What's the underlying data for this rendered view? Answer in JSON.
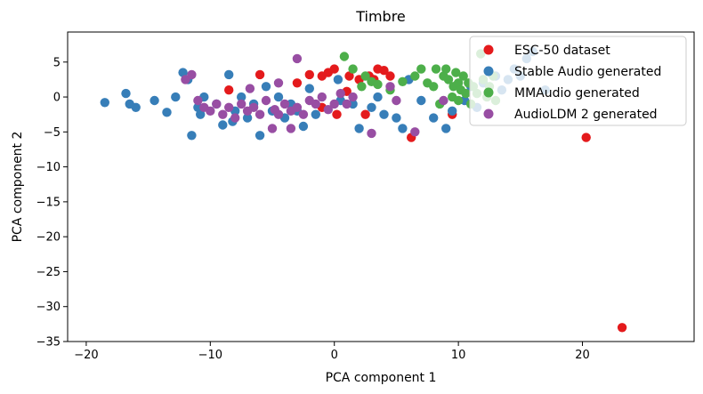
{
  "chart_data": {
    "type": "scatter",
    "title": "Timbre",
    "xlabel": "PCA component 1",
    "ylabel": "PCA component 2",
    "xlim": [
      -21.5,
      29
    ],
    "ylim": [
      -35,
      9.3
    ],
    "xticks": [
      -20,
      -10,
      0,
      10,
      20
    ],
    "yticks": [
      5,
      0,
      -5,
      -10,
      -15,
      -20,
      -25,
      -30,
      -35
    ],
    "xtick_labels": [
      "−20",
      "−10",
      "0",
      "10",
      "20"
    ],
    "ytick_labels": [
      "5",
      "0",
      "−5",
      "−10",
      "−15",
      "−20",
      "−25",
      "−30",
      "−35"
    ],
    "legend_position": "top-right",
    "series": [
      {
        "name": "ESC-50 dataset",
        "color": "#e41a1c",
        "points": [
          [
            -8.5,
            1
          ],
          [
            -6,
            3.2
          ],
          [
            -3,
            2
          ],
          [
            -2,
            3.2
          ],
          [
            -1,
            3
          ],
          [
            -0.5,
            3.5
          ],
          [
            0,
            4
          ],
          [
            0.2,
            -2.5
          ],
          [
            1.2,
            3
          ],
          [
            2,
            2.5
          ],
          [
            2.8,
            3
          ],
          [
            3.2,
            2.5
          ],
          [
            3.5,
            4
          ],
          [
            4,
            3.8
          ],
          [
            4.5,
            3
          ],
          [
            1,
            0.8
          ],
          [
            2.5,
            -2.5
          ],
          [
            -1,
            -1.5
          ],
          [
            6.2,
            -5.8
          ],
          [
            9.5,
            -2.5
          ],
          [
            20.3,
            -5.8
          ],
          [
            23.2,
            -33
          ]
        ]
      },
      {
        "name": "Stable Audio generated",
        "color": "#377eb8",
        "points": [
          [
            -18.5,
            -0.8
          ],
          [
            -16.8,
            0.5
          ],
          [
            -16.5,
            -1
          ],
          [
            -16,
            -1.5
          ],
          [
            -14.5,
            -0.5
          ],
          [
            -13.5,
            -2.2
          ],
          [
            -12.8,
            0
          ],
          [
            -12.2,
            3.5
          ],
          [
            -11.8,
            2.5
          ],
          [
            -11.5,
            -5.5
          ],
          [
            -11,
            -1.5
          ],
          [
            -10.8,
            -2.5
          ],
          [
            -10.5,
            0
          ],
          [
            -9.5,
            -1
          ],
          [
            -9,
            -4
          ],
          [
            -8.5,
            3.2
          ],
          [
            -8.2,
            -3.5
          ],
          [
            -8,
            -2
          ],
          [
            -7.5,
            0
          ],
          [
            -7,
            -3
          ],
          [
            -6.5,
            -1
          ],
          [
            -6,
            -5.5
          ],
          [
            -5.5,
            1.5
          ],
          [
            -5,
            -2
          ],
          [
            -4.5,
            0
          ],
          [
            -4,
            -3
          ],
          [
            -3.5,
            -1
          ],
          [
            -3,
            -2
          ],
          [
            -2.5,
            -4.2
          ],
          [
            -2,
            1.2
          ],
          [
            -1.5,
            -2.5
          ],
          [
            0.3,
            2.5
          ],
          [
            0.5,
            -0.5
          ],
          [
            1.5,
            -1
          ],
          [
            2,
            -4.5
          ],
          [
            3,
            -1.5
          ],
          [
            3.5,
            0
          ],
          [
            4,
            -2.5
          ],
          [
            5,
            -3
          ],
          [
            5.5,
            -4.5
          ],
          [
            6,
            2.5
          ],
          [
            7,
            -0.5
          ],
          [
            8,
            -3
          ],
          [
            9,
            -4.5
          ],
          [
            9.5,
            -2
          ],
          [
            10.5,
            -0.5
          ],
          [
            11,
            1.5
          ],
          [
            11.5,
            -1.5
          ],
          [
            12,
            2
          ],
          [
            13,
            3
          ],
          [
            13.5,
            1
          ],
          [
            14,
            2.5
          ],
          [
            14.5,
            4
          ],
          [
            15,
            3
          ],
          [
            15.5,
            5.5
          ],
          [
            16,
            6.5
          ],
          [
            17,
            1
          ]
        ]
      },
      {
        "name": "MMAudio generated",
        "color": "#4daf4a",
        "points": [
          [
            0.8,
            5.8
          ],
          [
            1.5,
            4
          ],
          [
            2.2,
            1.5
          ],
          [
            2.5,
            3
          ],
          [
            3,
            2.2
          ],
          [
            3.5,
            1.8
          ],
          [
            4.5,
            1
          ],
          [
            5.5,
            2.2
          ],
          [
            6.5,
            3
          ],
          [
            7,
            4
          ],
          [
            7.5,
            2
          ],
          [
            8,
            1.5
          ],
          [
            8.2,
            4
          ],
          [
            8.5,
            -1
          ],
          [
            8.8,
            3
          ],
          [
            9,
            4
          ],
          [
            9.2,
            2.5
          ],
          [
            9.5,
            0
          ],
          [
            9.6,
            1.5
          ],
          [
            9.8,
            3.5
          ],
          [
            10,
            -0.5
          ],
          [
            10,
            2
          ],
          [
            10.2,
            1
          ],
          [
            10.4,
            3
          ],
          [
            10.6,
            0.5
          ],
          [
            10.8,
            2
          ],
          [
            11,
            -1
          ],
          [
            11.2,
            1.5
          ],
          [
            11.5,
            0.5
          ],
          [
            11.8,
            6.2
          ],
          [
            12,
            2.5
          ],
          [
            12.3,
            0
          ],
          [
            12.5,
            1.5
          ],
          [
            12.8,
            3
          ],
          [
            13,
            -0.5
          ]
        ]
      },
      {
        "name": "AudioLDM 2 generated",
        "color": "#984ea3",
        "points": [
          [
            -12,
            2.5
          ],
          [
            -11.5,
            3.2
          ],
          [
            -11,
            -0.5
          ],
          [
            -10.5,
            -1.5
          ],
          [
            -10,
            -2
          ],
          [
            -9.5,
            -1
          ],
          [
            -9,
            -2.5
          ],
          [
            -8.5,
            -1.5
          ],
          [
            -8,
            -3
          ],
          [
            -7.5,
            -1
          ],
          [
            -7,
            -2
          ],
          [
            -6.5,
            -1.5
          ],
          [
            -6,
            -2.5
          ],
          [
            -5.5,
            -0.5
          ],
          [
            -5,
            -4.5
          ],
          [
            -4.8,
            -1.8
          ],
          [
            -4.5,
            -2.5
          ],
          [
            -4,
            -1
          ],
          [
            -3.5,
            -4.5
          ],
          [
            -3.5,
            -2
          ],
          [
            -3,
            5.5
          ],
          [
            -3,
            -1.5
          ],
          [
            -2.5,
            -2.5
          ],
          [
            -2,
            -0.5
          ],
          [
            -1.5,
            -1
          ],
          [
            -1,
            0
          ],
          [
            -0.5,
            -1.8
          ],
          [
            0,
            -1
          ],
          [
            0.5,
            0.5
          ],
          [
            1,
            -1
          ],
          [
            1.5,
            0
          ],
          [
            -6.8,
            1.2
          ],
          [
            -4.5,
            2
          ],
          [
            5,
            -0.5
          ],
          [
            4.5,
            1.5
          ],
          [
            3,
            -5.2
          ],
          [
            6.5,
            -5
          ],
          [
            8.8,
            -0.5
          ]
        ]
      }
    ]
  }
}
